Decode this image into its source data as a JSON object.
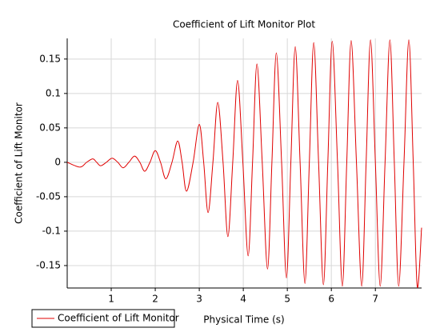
{
  "chart_data": {
    "type": "line",
    "title": "Coefficient of Lift Monitor Plot",
    "x_label": "Physical Time (s)",
    "y_label": "Coefficient of Lift Monitor",
    "x": [
      0,
      0.29,
      0.44,
      0.58,
      0.67,
      0.76,
      0.89,
      1.02,
      1.15,
      1.27,
      1.4,
      1.53,
      1.65,
      1.76,
      1.88,
      2.0,
      2.12,
      2.24,
      2.38,
      2.51,
      2.61,
      2.71,
      2.86,
      3.0,
      3.1,
      3.2,
      3.31,
      3.42,
      3.54,
      3.65,
      3.76,
      3.87,
      3.99,
      4.11,
      4.21,
      4.31,
      4.43,
      4.55,
      4.65,
      4.75,
      4.87,
      4.98,
      5.08,
      5.18,
      5.29,
      5.4,
      5.5,
      5.6,
      5.71,
      5.82,
      5.92,
      6.02,
      6.14,
      6.25,
      6.35,
      6.45,
      6.57,
      6.69,
      6.79,
      6.89,
      7.0,
      7.11,
      7.22,
      7.33,
      7.43,
      7.53,
      7.65,
      7.76,
      7.86,
      7.95,
      8.05
    ],
    "series": [
      {
        "name": "Coefficient of Lift Monitor",
        "color": "#e00000",
        "values": [
          0,
          -0.007,
          0,
          0.005,
          0,
          -0.005,
          0,
          0.006,
          0,
          -0.008,
          0,
          0.009,
          0,
          -0.013,
          0,
          0.017,
          0,
          -0.024,
          0,
          0.031,
          0,
          -0.042,
          0,
          0.055,
          0,
          -0.073,
          0,
          0.087,
          0,
          -0.108,
          0,
          0.119,
          0,
          -0.136,
          0,
          0.143,
          0,
          -0.155,
          0,
          0.159,
          0,
          -0.168,
          0,
          0.168,
          0,
          -0.176,
          0,
          0.174,
          0,
          -0.178,
          0,
          0.176,
          0,
          -0.18,
          0,
          0.177,
          0,
          -0.18,
          0,
          0.178,
          0,
          -0.18,
          0,
          0.178,
          0,
          -0.18,
          0,
          0.178,
          0,
          -0.18,
          -0.095
        ]
      }
    ],
    "xlim": [
      0,
      8.05
    ],
    "xticks": [
      1,
      2,
      3,
      4,
      5,
      6,
      7
    ],
    "ylim": [
      -0.1826,
      0.18
    ],
    "yticks": [
      -0.15,
      -0.1,
      -0.05,
      0,
      0.05,
      0.1,
      0.15
    ],
    "grid": true,
    "legend": "bottom-left"
  }
}
